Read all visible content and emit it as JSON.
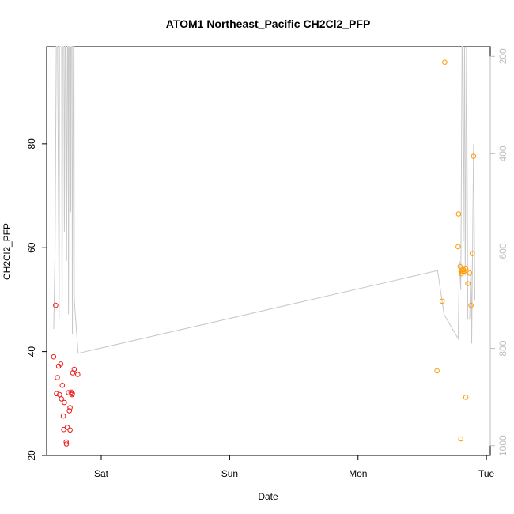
{
  "chart_data": {
    "type": "scatter",
    "title": "ATOM1 Northeast_Pacific CH2Cl2_PFP",
    "xlabel": "Date",
    "ylabel": "CH2Cl2_PFP",
    "x_ticks": [
      "Sat",
      "Sun",
      "Mon",
      "Tue"
    ],
    "x_tick_values": [
      1,
      2,
      3,
      4
    ],
    "xlim": [
      0.575,
      4.03
    ],
    "ylim": [
      20,
      98.7
    ],
    "y_ticks": [
      20,
      40,
      60,
      80
    ],
    "y2_ticks": [
      200,
      400,
      600,
      800,
      1000
    ],
    "y2lim": [
      1020,
      180
    ],
    "colors": {
      "red": "#ee1c1c",
      "orange": "#ff9a00",
      "line": "#c8c8c8",
      "axis": "#000000",
      "right_axis": "#bdbdbd"
    },
    "series": [
      {
        "color": "red",
        "points": [
          [
            0.63,
            39.0
          ],
          [
            0.645,
            48.9
          ],
          [
            0.652,
            31.9
          ],
          [
            0.658,
            35.0
          ],
          [
            0.668,
            37.2
          ],
          [
            0.676,
            31.7
          ],
          [
            0.685,
            37.6
          ],
          [
            0.69,
            30.9
          ],
          [
            0.697,
            33.5
          ],
          [
            0.705,
            27.6
          ],
          [
            0.708,
            25.0
          ],
          [
            0.713,
            30.2
          ],
          [
            0.727,
            22.6
          ],
          [
            0.729,
            22.2
          ],
          [
            0.735,
            25.4
          ],
          [
            0.745,
            32.1
          ],
          [
            0.752,
            28.6
          ],
          [
            0.757,
            29.2
          ],
          [
            0.757,
            24.9
          ],
          [
            0.765,
            32.2
          ],
          [
            0.772,
            31.7
          ],
          [
            0.775,
            31.9
          ],
          [
            0.778,
            35.9
          ],
          [
            0.79,
            36.6
          ],
          [
            0.817,
            35.6
          ]
        ]
      },
      {
        "color": "orange",
        "points": [
          [
            3.615,
            36.3
          ],
          [
            3.655,
            49.7
          ],
          [
            3.675,
            95.7
          ],
          [
            3.783,
            66.5
          ],
          [
            3.78,
            60.2
          ],
          [
            3.795,
            56.4
          ],
          [
            3.8,
            23.2
          ],
          [
            3.802,
            55.4
          ],
          [
            3.805,
            55.0
          ],
          [
            3.81,
            55.6
          ],
          [
            3.815,
            55.3
          ],
          [
            3.82,
            55.8
          ],
          [
            3.83,
            55.5
          ],
          [
            3.84,
            55.9
          ],
          [
            3.84,
            31.2
          ],
          [
            3.855,
            53.1
          ],
          [
            3.87,
            55.1
          ],
          [
            3.88,
            48.9
          ],
          [
            3.89,
            58.9
          ],
          [
            3.9,
            77.6
          ]
        ]
      }
    ],
    "line_series": {
      "axis": "right",
      "points": [
        [
          0.63,
          760
        ],
        [
          0.64,
          600
        ],
        [
          0.65,
          180
        ],
        [
          0.66,
          180
        ],
        [
          0.672,
          740
        ],
        [
          0.675,
          180
        ],
        [
          0.692,
          180
        ],
        [
          0.695,
          750
        ],
        [
          0.7,
          180
        ],
        [
          0.71,
          180
        ],
        [
          0.713,
          560
        ],
        [
          0.72,
          180
        ],
        [
          0.727,
          180
        ],
        [
          0.73,
          620
        ],
        [
          0.738,
          180
        ],
        [
          0.743,
          180
        ],
        [
          0.745,
          730
        ],
        [
          0.75,
          180
        ],
        [
          0.76,
          180
        ],
        [
          0.763,
          520
        ],
        [
          0.765,
          180
        ],
        [
          0.773,
          180
        ],
        [
          0.775,
          770
        ],
        [
          0.783,
          180
        ],
        [
          0.788,
          180
        ],
        [
          0.79,
          700
        ],
        [
          0.82,
          810
        ],
        [
          3.62,
          640
        ],
        [
          3.67,
          730
        ],
        [
          3.78,
          780
        ],
        [
          3.79,
          620
        ],
        [
          3.8,
          680
        ],
        [
          3.81,
          180
        ],
        [
          3.815,
          180
        ],
        [
          3.82,
          580
        ],
        [
          3.83,
          180
        ],
        [
          3.835,
          650
        ],
        [
          3.845,
          180
        ],
        [
          3.855,
          740
        ],
        [
          3.87,
          740
        ],
        [
          3.88,
          620
        ],
        [
          3.885,
          790
        ],
        [
          3.9,
          380
        ],
        [
          3.91,
          700
        ]
      ]
    }
  }
}
